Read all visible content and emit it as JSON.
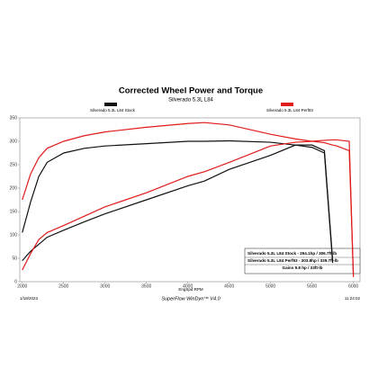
{
  "chart_data": {
    "type": "line",
    "title": "Corrected Wheel Power and Torque",
    "subtitle": "Silverado 5.3L L84",
    "x_label": "EngSpd RPM",
    "x": [
      2000,
      2100,
      2200,
      2300,
      2500,
      2750,
      3000,
      3500,
      4000,
      4200,
      4500,
      5000,
      5300,
      5500,
      5650,
      5750,
      5800,
      5950,
      6000
    ],
    "series": [
      {
        "name": "Silverado 5.3L L84 Stock",
        "color": "#111111",
        "torque": [
          105,
          170,
          225,
          255,
          275,
          285,
          290,
          295,
          300,
          300,
          301,
          298,
          292,
          287,
          275,
          40,
          null,
          null,
          null
        ],
        "power": [
          45,
          65,
          80,
          95,
          110,
          128,
          145,
          175,
          205,
          215,
          240,
          270,
          292,
          292,
          280,
          45,
          null,
          null,
          null
        ]
      },
      {
        "name": "Silverado 5.3L L84 Perf93",
        "color": "#e01b1b",
        "torque": [
          175,
          230,
          265,
          285,
          300,
          312,
          320,
          330,
          338,
          340,
          335,
          315,
          305,
          300,
          297,
          292,
          290,
          280,
          15
        ],
        "power": [
          25,
          60,
          90,
          105,
          120,
          140,
          160,
          190,
          225,
          235,
          255,
          290,
          298,
          300,
          302,
          303,
          303,
          300,
          10
        ]
      }
    ],
    "xlim": [
      1970,
      6080
    ],
    "xticks": [
      2000,
      2500,
      3000,
      3500,
      4000,
      4500,
      5000,
      5500,
      6000
    ],
    "ylim": [
      0,
      350
    ],
    "yticks": [
      0,
      50,
      100,
      150,
      200,
      250,
      300,
      350
    ],
    "summary": [
      "Silverado 5.3L L84 Stock - 294.1hp / 306.7ft-lb",
      "Silverado 5.3L L84 Perf93 - 303.8hp / 339.7ft-lb",
      "Gains 9.8 hp / 33ft-lb"
    ],
    "footer": {
      "date": "1/18/2023",
      "software": "SuperFlow WinDyn™ V4.0",
      "time": "11:24:02"
    }
  }
}
